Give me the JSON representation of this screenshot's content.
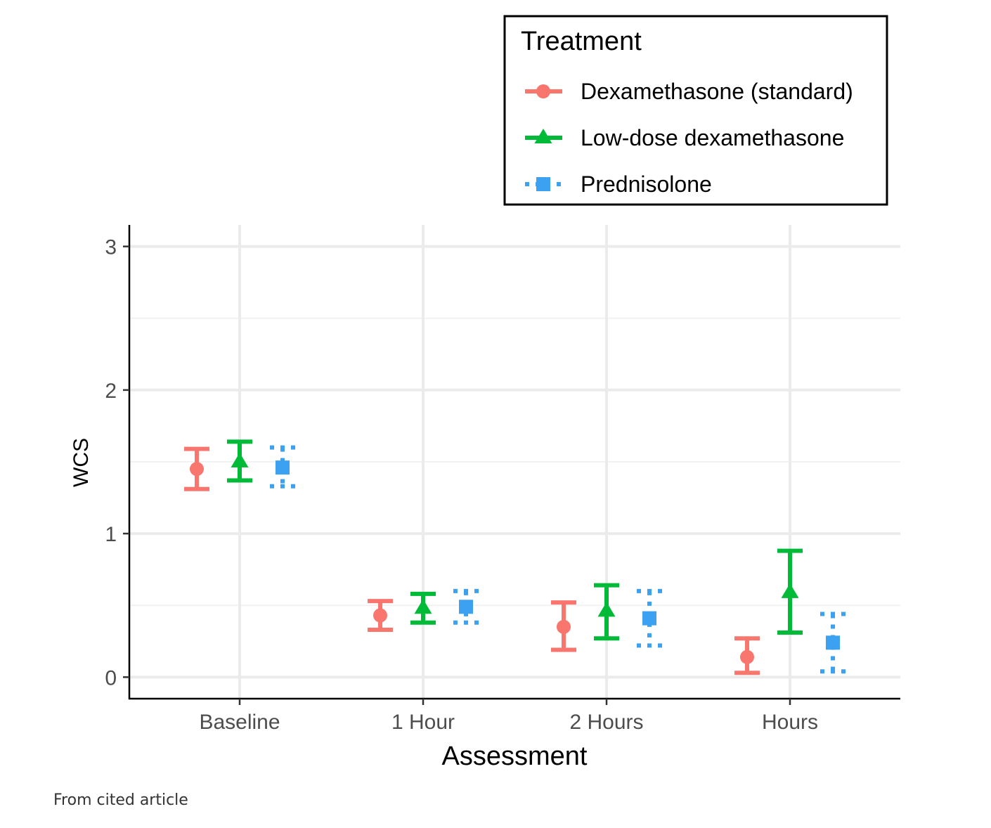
{
  "caption": "From cited article",
  "chart_data": {
    "type": "errorbar",
    "title": "",
    "xlabel": "Assessment",
    "ylabel": "WCS",
    "categories": [
      "Baseline",
      "1 Hour",
      "2 Hours",
      "Hours"
    ],
    "ylim": [
      -0.15,
      3.15
    ],
    "yticks": [
      0,
      1,
      2,
      3
    ],
    "grid": true,
    "legend": {
      "title": "Treatment",
      "placement": "top-right"
    },
    "series": [
      {
        "name": "Dexamethasone (standard)",
        "color": "#F8766D",
        "marker": "circle",
        "line": "solid",
        "mean": [
          1.45,
          0.43,
          0.35,
          0.14
        ],
        "lower": [
          1.31,
          0.33,
          0.19,
          0.03
        ],
        "upper": [
          1.59,
          0.53,
          0.52,
          0.27
        ]
      },
      {
        "name": "Low-dose dexamethasone",
        "color": "#00BA38",
        "marker": "triangle",
        "line": "solid",
        "mean": [
          1.5,
          0.48,
          0.46,
          0.59
        ],
        "lower": [
          1.37,
          0.38,
          0.27,
          0.31
        ],
        "upper": [
          1.64,
          0.58,
          0.64,
          0.88
        ]
      },
      {
        "name": "Prednisolone",
        "color": "#3BA1F0",
        "marker": "square",
        "line": "dotted",
        "mean": [
          1.46,
          0.49,
          0.41,
          0.24
        ],
        "lower": [
          1.33,
          0.38,
          0.22,
          0.04
        ],
        "upper": [
          1.6,
          0.6,
          0.6,
          0.44
        ]
      }
    ]
  }
}
